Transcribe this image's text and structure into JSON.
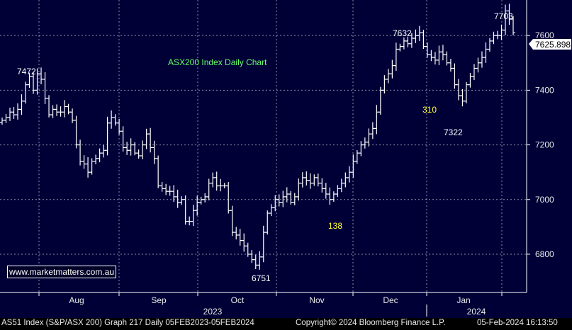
{
  "chart_data": {
    "type": "ohlc",
    "title": "ASX200 Index Daily Chart",
    "ylim": [
      6660,
      7730
    ],
    "yticks": [
      6800,
      7000,
      7200,
      7400,
      7600
    ],
    "ytick_labels": [
      "6800",
      "7000",
      "7200",
      "7400",
      "7600"
    ],
    "x_months": [
      "Aug",
      "Sep",
      "Oct",
      "Nov",
      "Dec",
      "Jan"
    ],
    "x_years": [
      "2023",
      "2024"
    ],
    "last_price": "7625.898",
    "last_value": 7625.898,
    "annotations": [
      {
        "text": "7472",
        "color": "#ffffff"
      },
      {
        "text": "7632",
        "color": "#ffffff"
      },
      {
        "text": "7703",
        "color": "#ffffff"
      },
      {
        "text": "7322",
        "color": "#ffffff"
      },
      {
        "text": "6751",
        "color": "#ffffff"
      },
      {
        "text": "310",
        "color": "#ffff33"
      },
      {
        "text": "138",
        "color": "#ffff33"
      }
    ],
    "closes": [
      7290,
      7300,
      7320,
      7310,
      7330,
      7360,
      7420,
      7450,
      7400,
      7460,
      7440,
      7370,
      7310,
      7330,
      7320,
      7320,
      7340,
      7320,
      7290,
      7200,
      7140,
      7130,
      7100,
      7140,
      7150,
      7170,
      7180,
      7280,
      7300,
      7280,
      7250,
      7190,
      7180,
      7200,
      7170,
      7160,
      7200,
      7240,
      7190,
      7150,
      7050,
      7040,
      7030,
      7030,
      7010,
      6990,
      7000,
      6920,
      6920,
      6960,
      6990,
      7000,
      7010,
      7060,
      7080,
      7050,
      7050,
      7050,
      6960,
      6880,
      6870,
      6850,
      6830,
      6800,
      6780,
      6760,
      6790,
      6880,
      6950,
      6970,
      7000,
      6990,
      7010,
      7020,
      6990,
      7010,
      7060,
      7080,
      7070,
      7060,
      7080,
      7060,
      7040,
      7020,
      7000,
      7020,
      7040,
      7060,
      7080,
      7100,
      7140,
      7170,
      7200,
      7210,
      7240,
      7260,
      7320,
      7400,
      7440,
      7460,
      7490,
      7550,
      7560,
      7580,
      7570,
      7590,
      7600,
      7610,
      7560,
      7530,
      7520,
      7510,
      7540,
      7530,
      7500,
      7480,
      7420,
      7380,
      7360,
      7420,
      7450,
      7480,
      7500,
      7520,
      7550,
      7580,
      7600,
      7600,
      7620,
      7690,
      7660,
      7610
    ],
    "grid": false,
    "legend": "none"
  },
  "watermark": "www.marketmatters.com.au",
  "footer": {
    "left": "AS51 Index (S&P/ASX 200) Graph 217  Daily 05FEB2023-05FEB2024",
    "middle": "Copyright© 2024 Bloomberg Finance L.P.",
    "right": "05-Feb-2024 16:13:50"
  },
  "colors": {
    "background": "#000037",
    "bars": "#ffffff",
    "title": "#66ff66",
    "yellow": "#ffff33",
    "grid": "#ffffff"
  }
}
